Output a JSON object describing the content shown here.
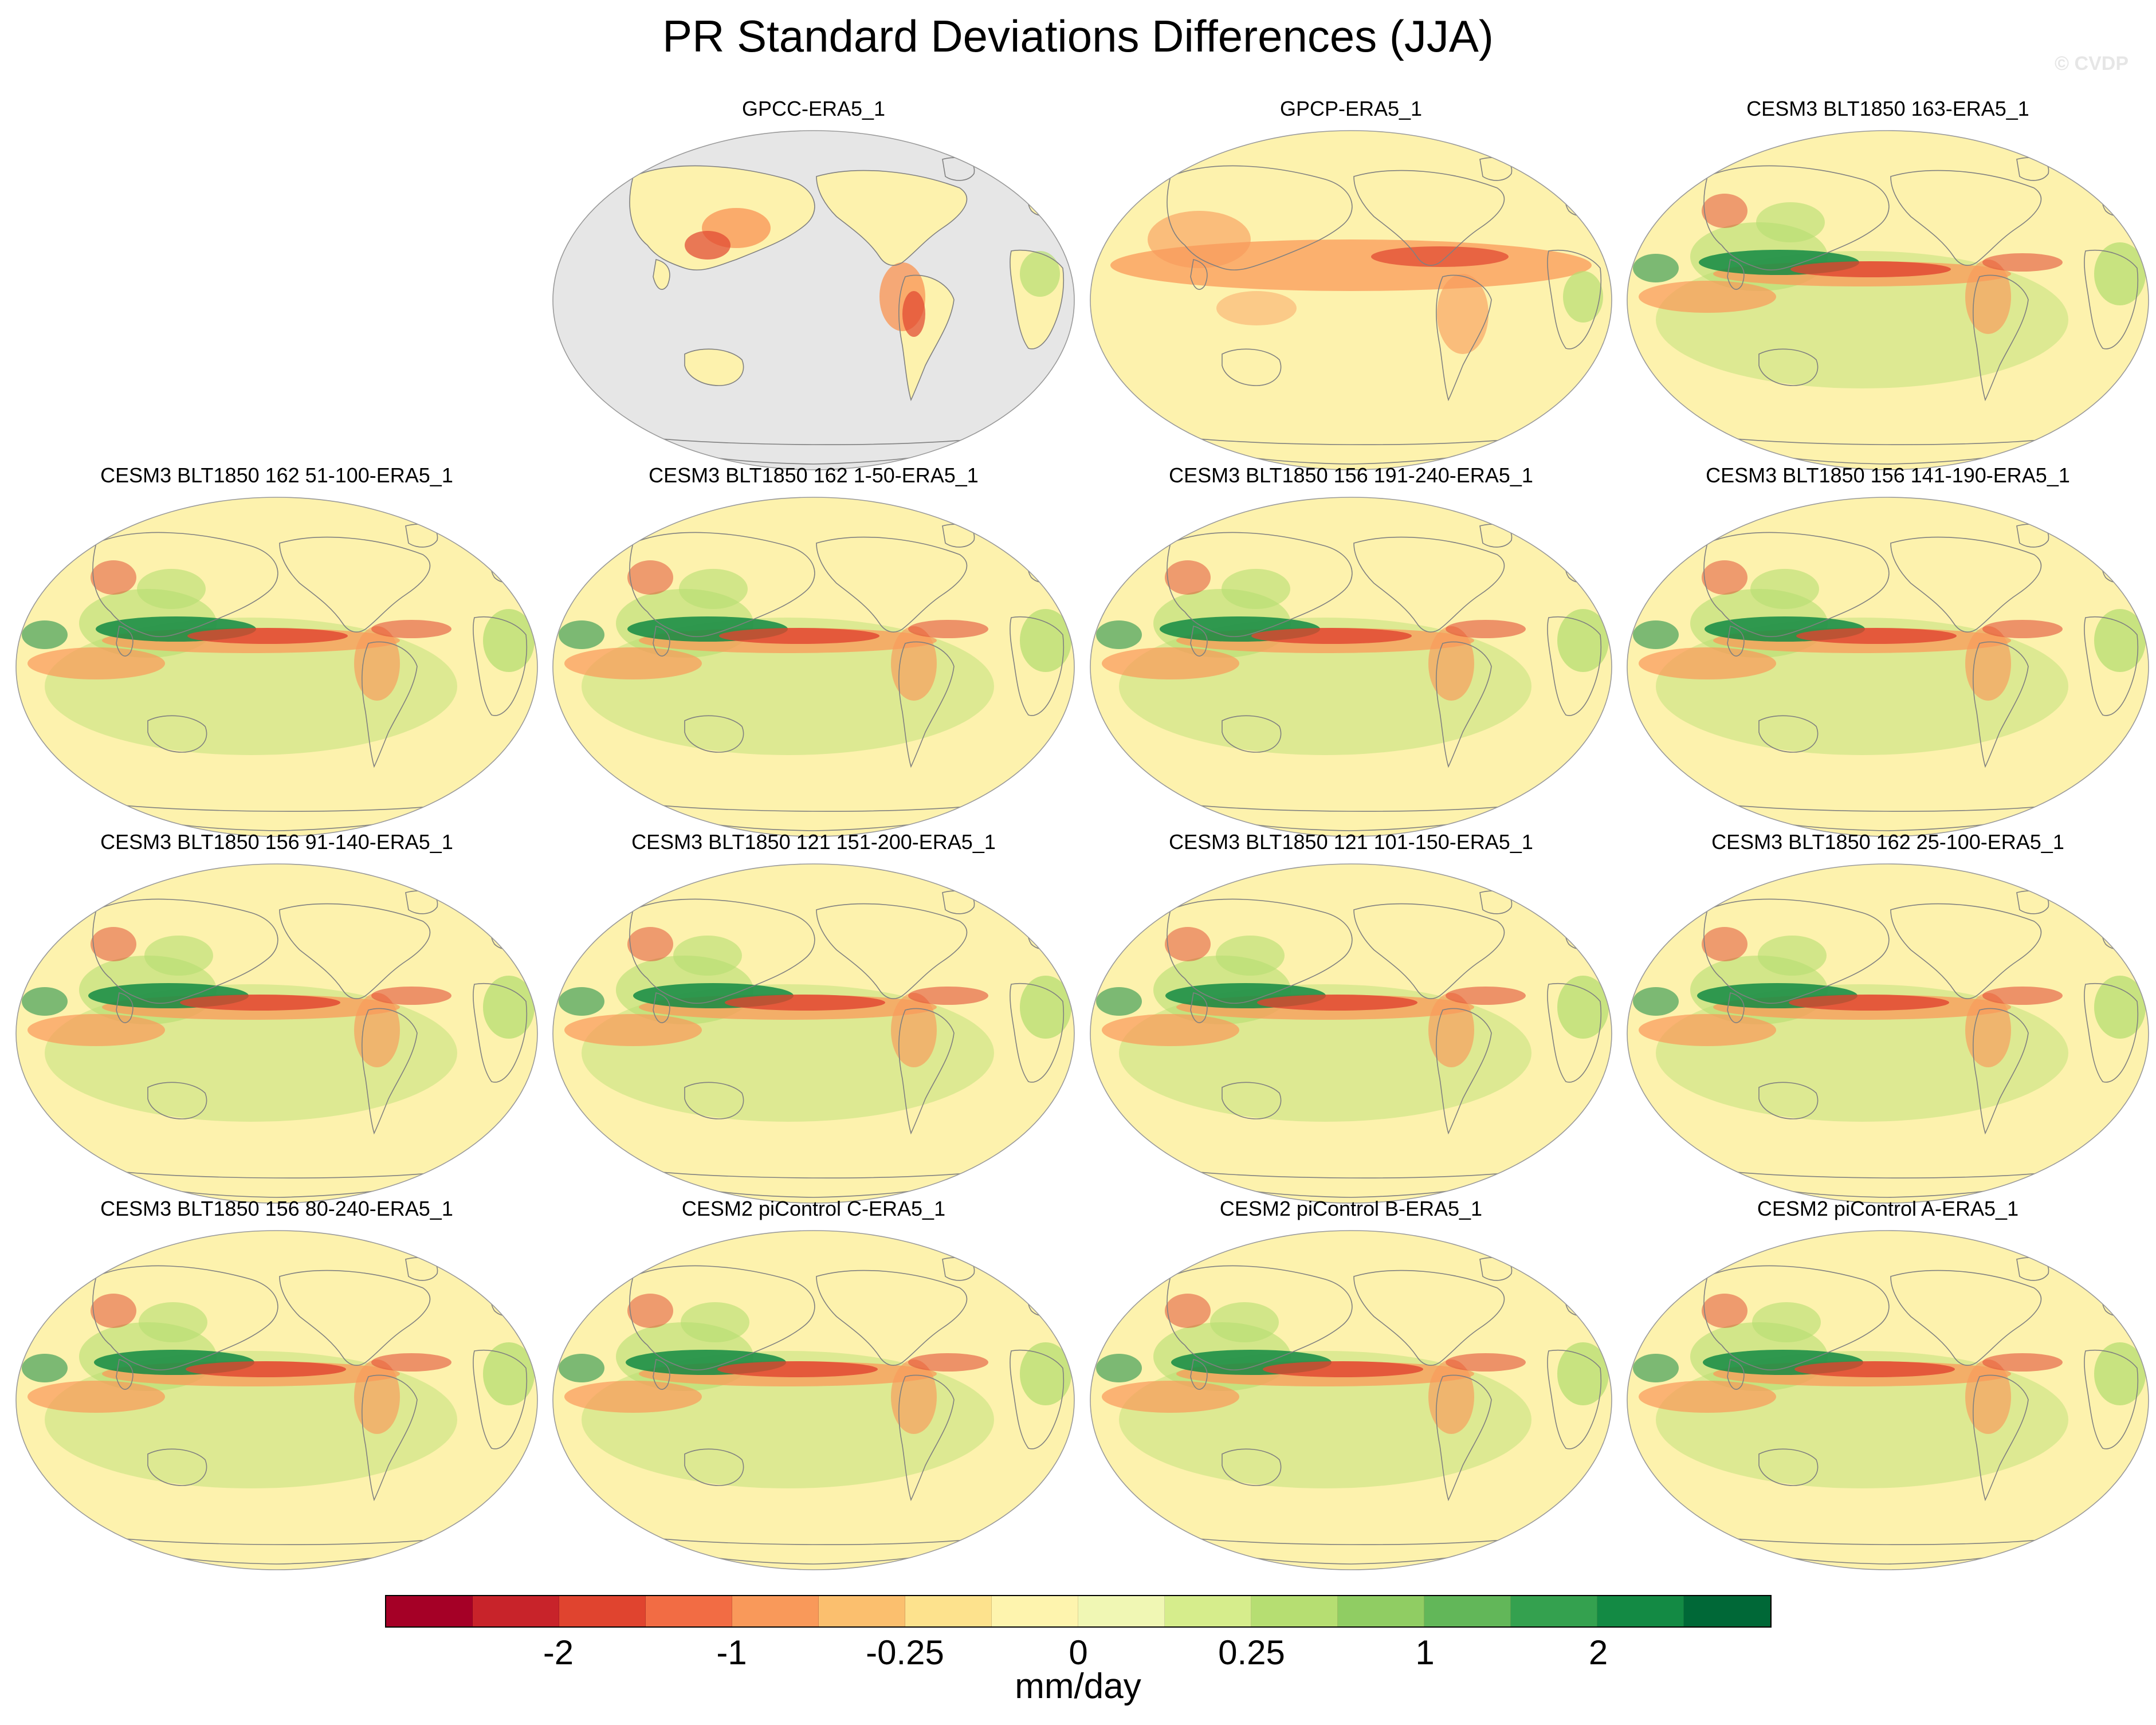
{
  "title": "PR Standard Deviations Differences (JJA)",
  "watermark": "© CVDP",
  "panels": [
    {
      "label": "GPCC-ERA5_1",
      "type": "land"
    },
    {
      "label": "GPCP-ERA5_1",
      "type": "obs"
    },
    {
      "label": "CESM3 BLT1850 163-ERA5_1",
      "type": "model"
    },
    {
      "label": "CESM3 BLT1850 162 51-100-ERA5_1",
      "type": "model"
    },
    {
      "label": "CESM3 BLT1850 162 1-50-ERA5_1",
      "type": "model"
    },
    {
      "label": "CESM3 BLT1850 156 191-240-ERA5_1",
      "type": "model"
    },
    {
      "label": "CESM3 BLT1850 156 141-190-ERA5_1",
      "type": "model"
    },
    {
      "label": "CESM3 BLT1850 156 91-140-ERA5_1",
      "type": "model"
    },
    {
      "label": "CESM3 BLT1850 121 151-200-ERA5_1",
      "type": "model"
    },
    {
      "label": "CESM3 BLT1850 121 101-150-ERA5_1",
      "type": "model"
    },
    {
      "label": "CESM3 BLT1850 162 25-100-ERA5_1",
      "type": "model"
    },
    {
      "label": "CESM3 BLT1850 156 80-240-ERA5_1",
      "type": "model"
    },
    {
      "label": "CESM2 piControl C-ERA5_1",
      "type": "model"
    },
    {
      "label": "CESM2 piControl B-ERA5_1",
      "type": "model"
    },
    {
      "label": "CESM2 piControl A-ERA5_1",
      "type": "model"
    }
  ],
  "colorbar": {
    "colors": [
      "#a50026",
      "#c8232a",
      "#e0442f",
      "#f26c44",
      "#f9995a",
      "#fbbf6e",
      "#fde28d",
      "#fef4ae",
      "#f0f7b4",
      "#d6ed8c",
      "#b6de72",
      "#90cd63",
      "#62b759",
      "#34a14f",
      "#138a44",
      "#006837"
    ],
    "tick_labels": [
      "-2",
      "-1",
      "-0.25",
      "0",
      "0.25",
      "1",
      "2"
    ],
    "units": "mm/day"
  },
  "map_colors": {
    "background": "#fdf2ad",
    "missing": "#e6e6e6",
    "coast": "#808080",
    "negative_strong": "#e0442f",
    "negative_weak": "#f9995a",
    "positive_weak": "#b6de72",
    "positive_strong": "#138a44"
  }
}
